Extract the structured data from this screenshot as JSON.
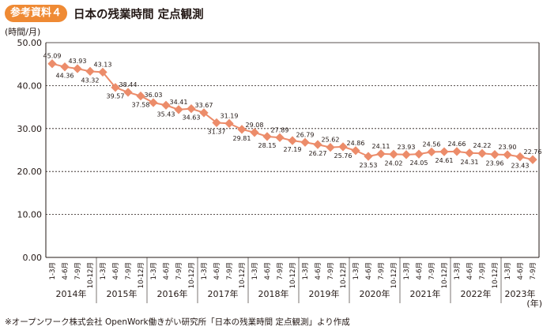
{
  "header": {
    "badge": "参考資料４",
    "title": "日本の残業時間 定点観測"
  },
  "colors": {
    "badge": "#ef8a34",
    "line": "#ec8c6a",
    "marker": "#ec8c6a",
    "grid_major": "#231815",
    "grid_minor": "#bfbfbf"
  },
  "source": "※オープンワーク株式会社 OpenWork働きがい研究所「日本の残業時間 定点観測」より作成",
  "chart_data": {
    "type": "line",
    "title": "日本の残業時間 定点観測",
    "ylabel": "(時間/月)",
    "xlabel": "(年)",
    "ylim": [
      0,
      50
    ],
    "yticks": [
      "0.00",
      "10.00",
      "20.00",
      "30.00",
      "40.00",
      "50.00"
    ],
    "grid": true,
    "categories": [
      "1-3月",
      "4-6月",
      "7-9月",
      "10-12月",
      "1-3月",
      "4-6月",
      "7-9月",
      "10-12月",
      "1-3月",
      "4-6月",
      "7-9月",
      "10-12月",
      "1-3月",
      "4-6月",
      "7-9月",
      "10-12月",
      "1-3月",
      "4-6月",
      "7-9月",
      "10-12月",
      "1-3月",
      "4-6月",
      "7-9月",
      "10-12月",
      "1-3月",
      "4-6月",
      "7-9月",
      "10-12月",
      "1-3月",
      "4-6月",
      "7-9月",
      "10-12月",
      "1-3月",
      "4-6月",
      "7-9月",
      "10-12月",
      "1-3月",
      "4-6月",
      "7-9月"
    ],
    "years": [
      {
        "label": "2014年",
        "count": 4
      },
      {
        "label": "2015年",
        "count": 4
      },
      {
        "label": "2016年",
        "count": 4
      },
      {
        "label": "2017年",
        "count": 4
      },
      {
        "label": "2018年",
        "count": 4
      },
      {
        "label": "2019年",
        "count": 4
      },
      {
        "label": "2020年",
        "count": 4
      },
      {
        "label": "2021年",
        "count": 4
      },
      {
        "label": "2022年",
        "count": 4
      },
      {
        "label": "2023年",
        "count": 3
      }
    ],
    "series": [
      {
        "values": [
          45.09,
          44.36,
          43.93,
          43.32,
          43.13,
          39.57,
          38.44,
          37.58,
          36.03,
          35.43,
          34.41,
          34.63,
          33.67,
          31.37,
          31.19,
          29.81,
          29.08,
          28.15,
          27.89,
          27.19,
          26.79,
          26.27,
          25.62,
          25.76,
          24.86,
          23.53,
          24.11,
          24.02,
          23.93,
          24.05,
          24.56,
          24.61,
          24.66,
          24.31,
          24.22,
          23.96,
          23.9,
          23.43,
          22.76
        ],
        "labels": [
          "45.09",
          "44.36",
          "43.93",
          "43.32",
          "43.13",
          "39.57",
          "38.44",
          "37.58",
          "36.03",
          "35.43",
          "34.41",
          "34.63",
          "33.67",
          "31.37",
          "31.19",
          "29.81",
          "29.08",
          "28.15",
          "27.89",
          "27.19",
          "26.79",
          "26.27",
          "25.62",
          "25.76",
          "24.86",
          "23.53",
          "24.11",
          "24.02",
          "23.93",
          "24.05",
          "24.56",
          "24.61",
          "24.66",
          "24.31",
          "24.22",
          "23.96",
          "23.90",
          "23.43",
          "22.76"
        ]
      }
    ]
  }
}
